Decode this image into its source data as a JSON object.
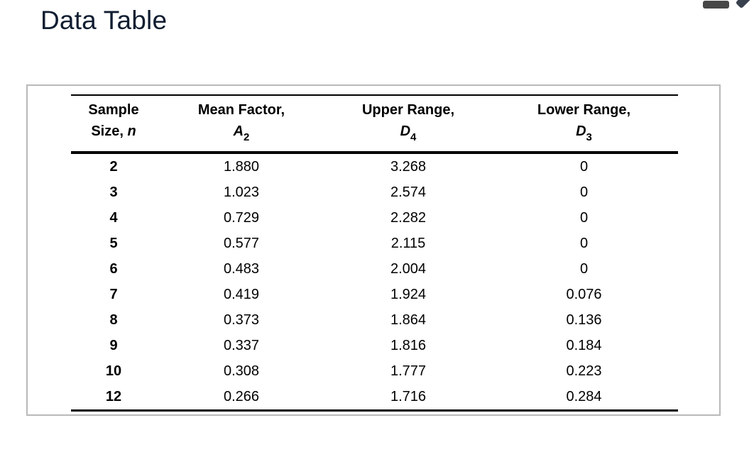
{
  "page": {
    "title": "Data Table"
  },
  "toolbar": {
    "icons": [
      {
        "name": "minimize-dash-icon",
        "color": "#474747"
      },
      {
        "name": "pencil-edit-icon",
        "color": "#39414e"
      }
    ]
  },
  "colors": {
    "title_text": "#101d31",
    "panel_border": "#b9b9b9",
    "table_rules": "#000000",
    "background": "#ffffff"
  },
  "table": {
    "columns": [
      {
        "line1": "Sample",
        "line2": "Size,",
        "symbol": "n",
        "subscript": ""
      },
      {
        "line1": "Mean Factor,",
        "symbol": "A",
        "subscript": "2"
      },
      {
        "line1": "Upper Range,",
        "symbol": "D",
        "subscript": "4"
      },
      {
        "line1": "Lower Range,",
        "symbol": "D",
        "subscript": "3"
      }
    ],
    "rows": [
      {
        "n": "2",
        "a2": "1.880",
        "d4": "3.268",
        "d3": "0"
      },
      {
        "n": "3",
        "a2": "1.023",
        "d4": "2.574",
        "d3": "0"
      },
      {
        "n": "4",
        "a2": "0.729",
        "d4": "2.282",
        "d3": "0"
      },
      {
        "n": "5",
        "a2": "0.577",
        "d4": "2.115",
        "d3": "0"
      },
      {
        "n": "6",
        "a2": "0.483",
        "d4": "2.004",
        "d3": "0"
      },
      {
        "n": "7",
        "a2": "0.419",
        "d4": "1.924",
        "d3": "0.076"
      },
      {
        "n": "8",
        "a2": "0.373",
        "d4": "1.864",
        "d3": "0.136"
      },
      {
        "n": "9",
        "a2": "0.337",
        "d4": "1.816",
        "d3": "0.184"
      },
      {
        "n": "10",
        "a2": "0.308",
        "d4": "1.777",
        "d3": "0.223"
      },
      {
        "n": "12",
        "a2": "0.266",
        "d4": "1.716",
        "d3": "0.284"
      }
    ]
  }
}
